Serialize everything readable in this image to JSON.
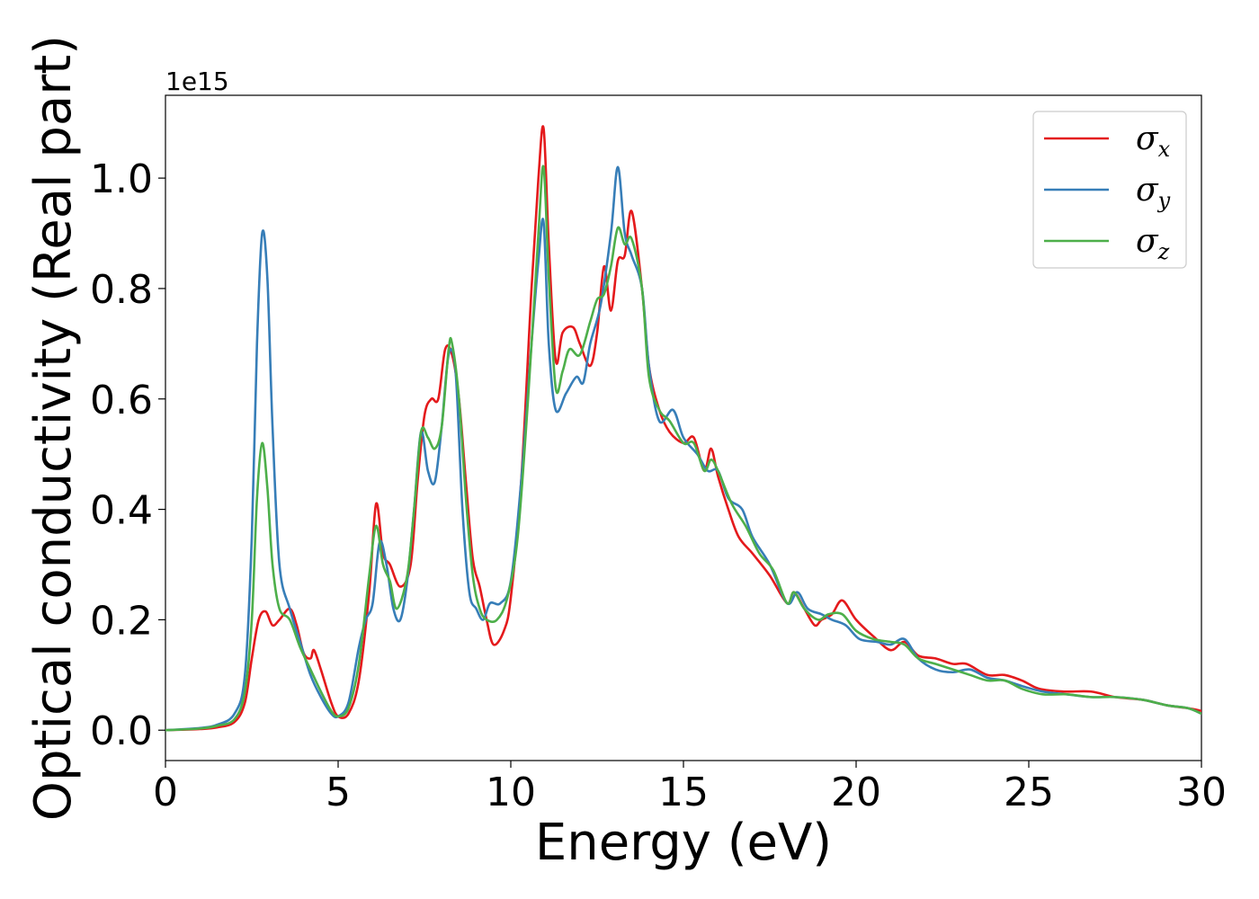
{
  "chart_data": {
    "type": "line",
    "title": "",
    "xlabel": "Energy (eV)",
    "ylabel": "Optical conductivity (Real part)",
    "offset_label": "1e15",
    "xlim": [
      0,
      30
    ],
    "ylim": [
      -0.055,
      1.15
    ],
    "y_scale_factor": 1000000000000000.0,
    "x_ticks": [
      0,
      5,
      10,
      15,
      20,
      25,
      30
    ],
    "x_tick_labels": [
      "0",
      "5",
      "10",
      "15",
      "20",
      "25",
      "30"
    ],
    "y_ticks": [
      0.0,
      0.2,
      0.4,
      0.6,
      0.8,
      1.0
    ],
    "y_tick_labels": [
      "0.0",
      "0.2",
      "0.4",
      "0.6",
      "0.8",
      "1.0"
    ],
    "grid": false,
    "legend_position": "top-right",
    "series": [
      {
        "name": "σx",
        "symbol": "σ",
        "subscript": "x",
        "color": "#e41a1c",
        "x": [
          0,
          1,
          1.5,
          2,
          2.3,
          2.5,
          2.7,
          2.9,
          3.1,
          3.3,
          3.6,
          3.8,
          4.0,
          4.2,
          4.3,
          4.5,
          4.8,
          5.0,
          5.3,
          5.6,
          5.9,
          6.1,
          6.3,
          6.5,
          6.8,
          7.1,
          7.3,
          7.5,
          7.7,
          7.9,
          8.1,
          8.3,
          8.5,
          8.7,
          8.9,
          9.1,
          9.3,
          9.5,
          9.8,
          10.0,
          10.3,
          10.6,
          10.8,
          10.95,
          11.1,
          11.3,
          11.5,
          11.8,
          12.0,
          12.3,
          12.5,
          12.7,
          12.9,
          13.1,
          13.3,
          13.5,
          13.8,
          14.0,
          14.3,
          14.6,
          15.0,
          15.3,
          15.6,
          15.8,
          16.0,
          16.3,
          16.6,
          17.0,
          17.5,
          18.0,
          18.2,
          18.5,
          18.8,
          19.0,
          19.3,
          19.6,
          20.0,
          20.5,
          21.0,
          21.4,
          21.8,
          22.3,
          22.8,
          23.2,
          23.8,
          24.3,
          24.8,
          25.3,
          26.0,
          26.8,
          27.5,
          28.3,
          29.0,
          29.6,
          30.0
        ],
        "values": [
          0.0,
          0.002,
          0.005,
          0.015,
          0.05,
          0.13,
          0.2,
          0.215,
          0.19,
          0.2,
          0.22,
          0.19,
          0.14,
          0.13,
          0.145,
          0.11,
          0.05,
          0.025,
          0.03,
          0.09,
          0.25,
          0.41,
          0.32,
          0.3,
          0.26,
          0.3,
          0.45,
          0.57,
          0.6,
          0.6,
          0.69,
          0.68,
          0.6,
          0.45,
          0.31,
          0.26,
          0.2,
          0.155,
          0.18,
          0.24,
          0.45,
          0.8,
          1.0,
          1.09,
          0.88,
          0.67,
          0.72,
          0.73,
          0.7,
          0.66,
          0.72,
          0.84,
          0.76,
          0.85,
          0.86,
          0.94,
          0.8,
          0.66,
          0.58,
          0.54,
          0.52,
          0.53,
          0.47,
          0.51,
          0.46,
          0.4,
          0.35,
          0.32,
          0.28,
          0.23,
          0.25,
          0.22,
          0.19,
          0.2,
          0.21,
          0.235,
          0.2,
          0.17,
          0.145,
          0.16,
          0.135,
          0.13,
          0.12,
          0.12,
          0.1,
          0.1,
          0.09,
          0.075,
          0.07,
          0.07,
          0.06,
          0.055,
          0.045,
          0.04,
          0.035
        ]
      },
      {
        "name": "σy",
        "symbol": "σ",
        "subscript": "y",
        "color": "#377eb8",
        "x": [
          0,
          1,
          1.5,
          2,
          2.3,
          2.5,
          2.65,
          2.8,
          2.95,
          3.1,
          3.3,
          3.6,
          3.9,
          4.2,
          4.5,
          4.8,
          5.0,
          5.3,
          5.6,
          5.8,
          6.0,
          6.2,
          6.4,
          6.6,
          6.8,
          7.0,
          7.2,
          7.4,
          7.6,
          7.8,
          8.0,
          8.2,
          8.4,
          8.6,
          8.8,
          9.0,
          9.2,
          9.4,
          9.7,
          10.0,
          10.3,
          10.6,
          10.8,
          10.95,
          11.1,
          11.3,
          11.6,
          11.9,
          12.1,
          12.3,
          12.6,
          12.9,
          13.1,
          13.3,
          13.5,
          13.8,
          14.0,
          14.3,
          14.7,
          15.0,
          15.4,
          15.7,
          16.0,
          16.3,
          16.7,
          17.0,
          17.5,
          18.0,
          18.3,
          18.6,
          19.0,
          19.3,
          19.7,
          20.1,
          20.6,
          21.0,
          21.4,
          21.8,
          22.3,
          22.8,
          23.3,
          23.8,
          24.3,
          24.8,
          25.4,
          26.1,
          26.8,
          27.5,
          28.3,
          29.0,
          29.6,
          30.0
        ],
        "values": [
          0.0,
          0.004,
          0.01,
          0.03,
          0.1,
          0.35,
          0.7,
          0.9,
          0.82,
          0.55,
          0.3,
          0.22,
          0.16,
          0.1,
          0.06,
          0.03,
          0.025,
          0.05,
          0.15,
          0.2,
          0.23,
          0.34,
          0.3,
          0.22,
          0.2,
          0.27,
          0.4,
          0.54,
          0.47,
          0.45,
          0.55,
          0.68,
          0.65,
          0.4,
          0.25,
          0.22,
          0.2,
          0.23,
          0.23,
          0.27,
          0.45,
          0.7,
          0.85,
          0.92,
          0.7,
          0.58,
          0.61,
          0.64,
          0.63,
          0.7,
          0.77,
          0.9,
          1.02,
          0.9,
          0.86,
          0.8,
          0.66,
          0.56,
          0.58,
          0.53,
          0.5,
          0.47,
          0.47,
          0.42,
          0.4,
          0.35,
          0.3,
          0.23,
          0.25,
          0.22,
          0.21,
          0.2,
          0.19,
          0.165,
          0.16,
          0.155,
          0.165,
          0.13,
          0.11,
          0.105,
          0.11,
          0.095,
          0.09,
          0.08,
          0.07,
          0.065,
          0.06,
          0.06,
          0.055,
          0.045,
          0.04,
          0.03
        ]
      },
      {
        "name": "σz",
        "symbol": "σ",
        "subscript": "z",
        "color": "#4daf4a",
        "x": [
          0,
          1,
          1.5,
          2,
          2.3,
          2.5,
          2.65,
          2.8,
          2.95,
          3.1,
          3.3,
          3.6,
          3.9,
          4.2,
          4.5,
          4.8,
          5.0,
          5.3,
          5.6,
          5.9,
          6.1,
          6.3,
          6.5,
          6.7,
          7.0,
          7.2,
          7.4,
          7.6,
          7.8,
          8.0,
          8.2,
          8.3,
          8.5,
          8.7,
          8.9,
          9.1,
          9.3,
          9.6,
          9.9,
          10.2,
          10.5,
          10.8,
          10.95,
          11.1,
          11.3,
          11.5,
          11.7,
          12.0,
          12.3,
          12.5,
          12.7,
          12.9,
          13.1,
          13.3,
          13.5,
          13.8,
          14.0,
          14.3,
          14.6,
          15.0,
          15.3,
          15.6,
          15.8,
          16.0,
          16.4,
          16.8,
          17.2,
          17.6,
          18.0,
          18.2,
          18.5,
          18.9,
          19.2,
          19.6,
          20.0,
          20.5,
          21.0,
          21.4,
          21.8,
          22.3,
          22.8,
          23.3,
          23.8,
          24.3,
          24.8,
          25.4,
          26.1,
          26.8,
          27.5,
          28.3,
          29.0,
          29.6,
          30.0
        ],
        "values": [
          0.0,
          0.003,
          0.008,
          0.02,
          0.07,
          0.2,
          0.42,
          0.52,
          0.44,
          0.3,
          0.22,
          0.2,
          0.15,
          0.11,
          0.07,
          0.035,
          0.025,
          0.04,
          0.12,
          0.28,
          0.37,
          0.3,
          0.27,
          0.22,
          0.28,
          0.4,
          0.54,
          0.53,
          0.51,
          0.55,
          0.69,
          0.7,
          0.6,
          0.42,
          0.28,
          0.22,
          0.2,
          0.2,
          0.24,
          0.35,
          0.6,
          0.9,
          1.02,
          0.82,
          0.62,
          0.65,
          0.69,
          0.68,
          0.74,
          0.78,
          0.79,
          0.84,
          0.91,
          0.88,
          0.89,
          0.8,
          0.64,
          0.58,
          0.56,
          0.52,
          0.52,
          0.47,
          0.49,
          0.47,
          0.41,
          0.37,
          0.32,
          0.29,
          0.23,
          0.25,
          0.22,
          0.2,
          0.21,
          0.21,
          0.18,
          0.165,
          0.16,
          0.155,
          0.13,
          0.12,
          0.11,
          0.1,
          0.09,
          0.09,
          0.075,
          0.065,
          0.065,
          0.06,
          0.06,
          0.055,
          0.045,
          0.04,
          0.03
        ]
      }
    ]
  }
}
